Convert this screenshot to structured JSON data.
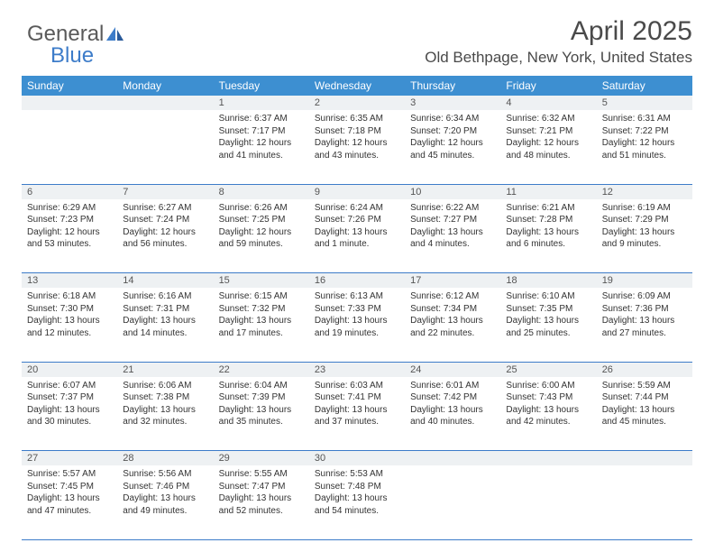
{
  "logo": {
    "text1": "General",
    "text2": "Blue",
    "color1": "#5a5a5a",
    "color2": "#3d7cc9"
  },
  "header": {
    "title": "April 2025",
    "location": "Old Bethpage, New York, United States"
  },
  "styling": {
    "page_bg": "#ffffff",
    "header_bg": "#3d8fd1",
    "header_text": "#ffffff",
    "daynum_bg": "#eef1f3",
    "border_color": "#3d7cc9",
    "body_text": "#333333",
    "title_fontsize": 30,
    "location_fontsize": 17,
    "dayheader_fontsize": 12,
    "daynum_fontsize": 11,
    "cell_fontsize": 10
  },
  "days": [
    "Sunday",
    "Monday",
    "Tuesday",
    "Wednesday",
    "Thursday",
    "Friday",
    "Saturday"
  ],
  "weeks": [
    [
      null,
      null,
      {
        "n": "1",
        "sr": "6:37 AM",
        "ss": "7:17 PM",
        "dl": "12 hours and 41 minutes."
      },
      {
        "n": "2",
        "sr": "6:35 AM",
        "ss": "7:18 PM",
        "dl": "12 hours and 43 minutes."
      },
      {
        "n": "3",
        "sr": "6:34 AM",
        "ss": "7:20 PM",
        "dl": "12 hours and 45 minutes."
      },
      {
        "n": "4",
        "sr": "6:32 AM",
        "ss": "7:21 PM",
        "dl": "12 hours and 48 minutes."
      },
      {
        "n": "5",
        "sr": "6:31 AM",
        "ss": "7:22 PM",
        "dl": "12 hours and 51 minutes."
      }
    ],
    [
      {
        "n": "6",
        "sr": "6:29 AM",
        "ss": "7:23 PM",
        "dl": "12 hours and 53 minutes."
      },
      {
        "n": "7",
        "sr": "6:27 AM",
        "ss": "7:24 PM",
        "dl": "12 hours and 56 minutes."
      },
      {
        "n": "8",
        "sr": "6:26 AM",
        "ss": "7:25 PM",
        "dl": "12 hours and 59 minutes."
      },
      {
        "n": "9",
        "sr": "6:24 AM",
        "ss": "7:26 PM",
        "dl": "13 hours and 1 minute."
      },
      {
        "n": "10",
        "sr": "6:22 AM",
        "ss": "7:27 PM",
        "dl": "13 hours and 4 minutes."
      },
      {
        "n": "11",
        "sr": "6:21 AM",
        "ss": "7:28 PM",
        "dl": "13 hours and 6 minutes."
      },
      {
        "n": "12",
        "sr": "6:19 AM",
        "ss": "7:29 PM",
        "dl": "13 hours and 9 minutes."
      }
    ],
    [
      {
        "n": "13",
        "sr": "6:18 AM",
        "ss": "7:30 PM",
        "dl": "13 hours and 12 minutes."
      },
      {
        "n": "14",
        "sr": "6:16 AM",
        "ss": "7:31 PM",
        "dl": "13 hours and 14 minutes."
      },
      {
        "n": "15",
        "sr": "6:15 AM",
        "ss": "7:32 PM",
        "dl": "13 hours and 17 minutes."
      },
      {
        "n": "16",
        "sr": "6:13 AM",
        "ss": "7:33 PM",
        "dl": "13 hours and 19 minutes."
      },
      {
        "n": "17",
        "sr": "6:12 AM",
        "ss": "7:34 PM",
        "dl": "13 hours and 22 minutes."
      },
      {
        "n": "18",
        "sr": "6:10 AM",
        "ss": "7:35 PM",
        "dl": "13 hours and 25 minutes."
      },
      {
        "n": "19",
        "sr": "6:09 AM",
        "ss": "7:36 PM",
        "dl": "13 hours and 27 minutes."
      }
    ],
    [
      {
        "n": "20",
        "sr": "6:07 AM",
        "ss": "7:37 PM",
        "dl": "13 hours and 30 minutes."
      },
      {
        "n": "21",
        "sr": "6:06 AM",
        "ss": "7:38 PM",
        "dl": "13 hours and 32 minutes."
      },
      {
        "n": "22",
        "sr": "6:04 AM",
        "ss": "7:39 PM",
        "dl": "13 hours and 35 minutes."
      },
      {
        "n": "23",
        "sr": "6:03 AM",
        "ss": "7:41 PM",
        "dl": "13 hours and 37 minutes."
      },
      {
        "n": "24",
        "sr": "6:01 AM",
        "ss": "7:42 PM",
        "dl": "13 hours and 40 minutes."
      },
      {
        "n": "25",
        "sr": "6:00 AM",
        "ss": "7:43 PM",
        "dl": "13 hours and 42 minutes."
      },
      {
        "n": "26",
        "sr": "5:59 AM",
        "ss": "7:44 PM",
        "dl": "13 hours and 45 minutes."
      }
    ],
    [
      {
        "n": "27",
        "sr": "5:57 AM",
        "ss": "7:45 PM",
        "dl": "13 hours and 47 minutes."
      },
      {
        "n": "28",
        "sr": "5:56 AM",
        "ss": "7:46 PM",
        "dl": "13 hours and 49 minutes."
      },
      {
        "n": "29",
        "sr": "5:55 AM",
        "ss": "7:47 PM",
        "dl": "13 hours and 52 minutes."
      },
      {
        "n": "30",
        "sr": "5:53 AM",
        "ss": "7:48 PM",
        "dl": "13 hours and 54 minutes."
      },
      null,
      null,
      null
    ]
  ],
  "labels": {
    "sunrise": "Sunrise:",
    "sunset": "Sunset:",
    "daylight": "Daylight:"
  }
}
